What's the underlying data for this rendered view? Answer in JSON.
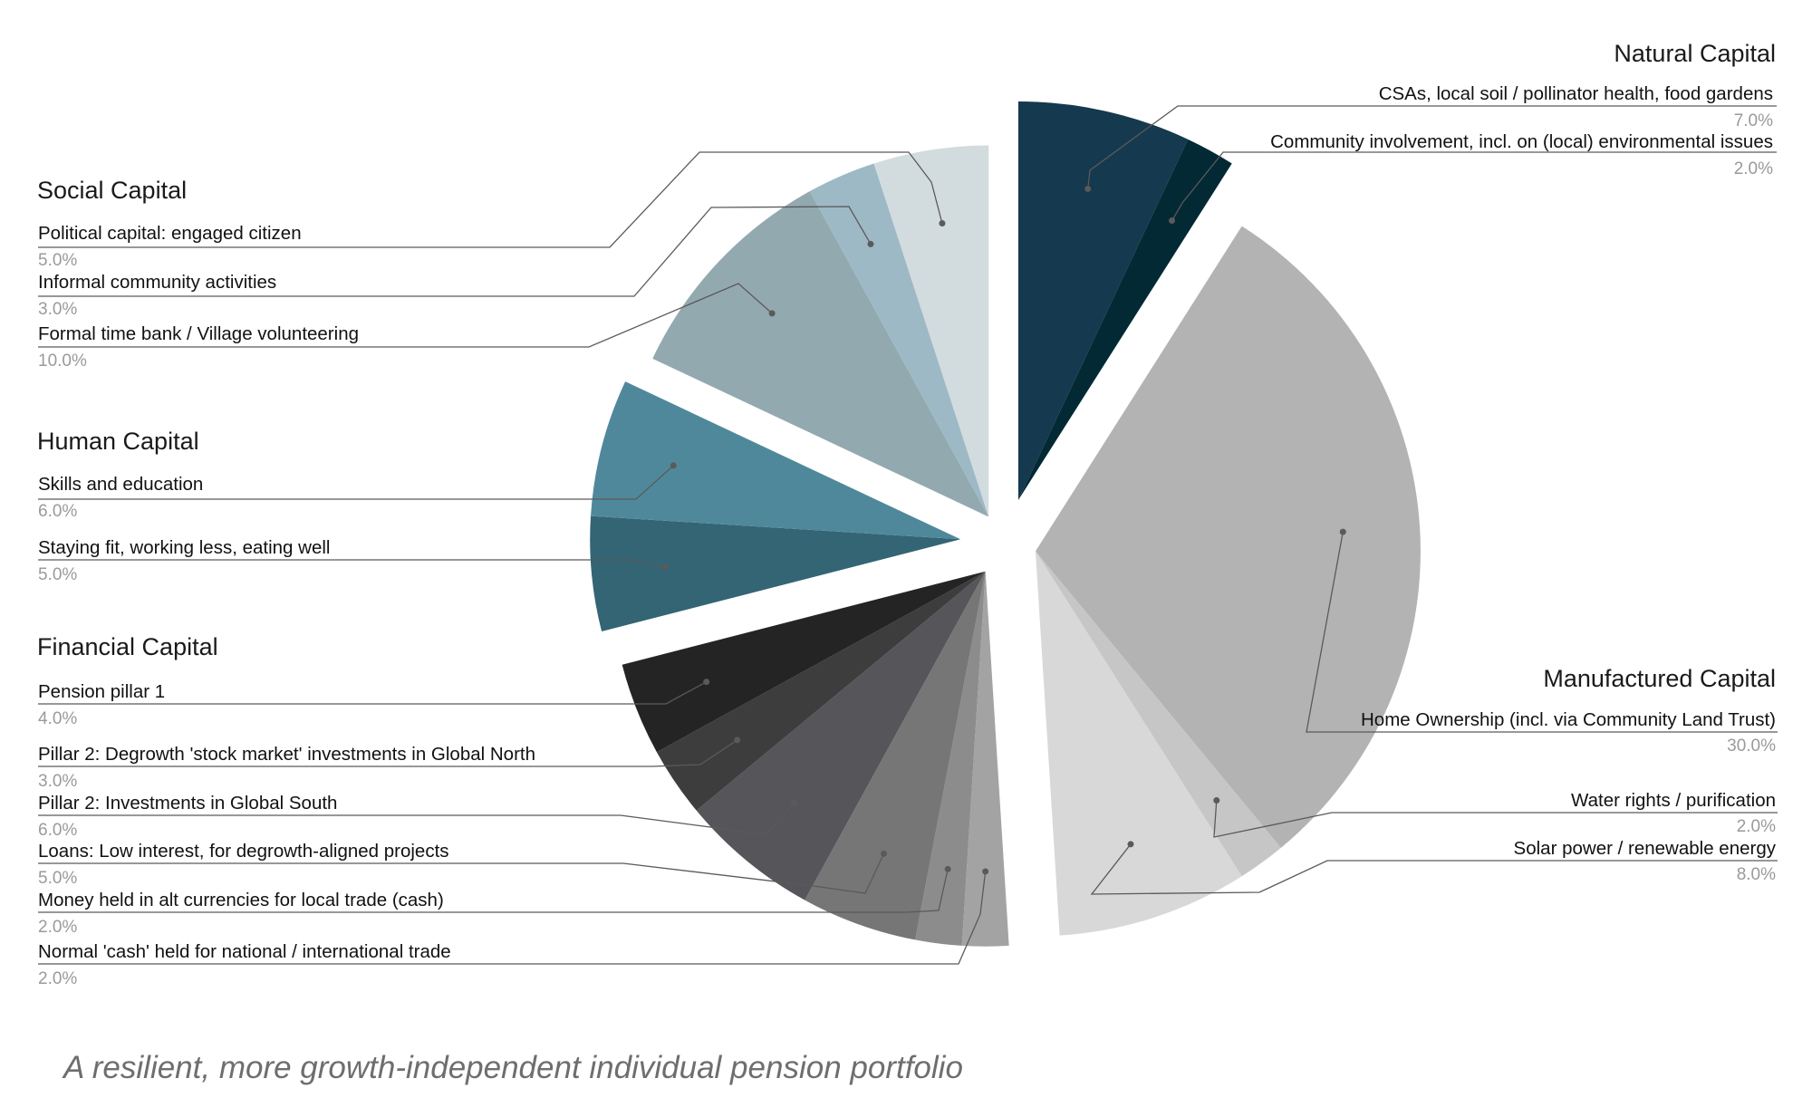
{
  "chart_data": {
    "type": "pie",
    "caption": "A resilient, more growth-independent individual pension portfolio",
    "groups": [
      {
        "name": "Natural Capital",
        "items": [
          {
            "label": "CSAs, local soil / pollinator health, food gardens",
            "value": 7.0,
            "pct": "7.0%",
            "color": "#15394e"
          },
          {
            "label": "Community involvement, incl. on (local) environmental issues",
            "value": 2.0,
            "pct": "2.0%",
            "color": "#032935"
          }
        ]
      },
      {
        "name": "Manufactured Capital",
        "items": [
          {
            "label": "Home Ownership (incl. via Community Land Trust)",
            "value": 30.0,
            "pct": "30.0%",
            "color": "#b3b3b3"
          },
          {
            "label": "Water rights / purification",
            "value": 2.0,
            "pct": "2.0%",
            "color": "#c6c6c6"
          },
          {
            "label": "Solar power / renewable energy",
            "value": 8.0,
            "pct": "8.0%",
            "color": "#d8d8d8"
          }
        ]
      },
      {
        "name": "Financial Capital",
        "items": [
          {
            "label": "Normal 'cash' held for national / international trade",
            "value": 2.0,
            "pct": "2.0%",
            "color": "#a3a3a3"
          },
          {
            "label": "Money held in alt currencies for local trade (cash)",
            "value": 2.0,
            "pct": "2.0%",
            "color": "#8c8c8c"
          },
          {
            "label": "Loans: Low interest, for degrowth-aligned projects",
            "value": 5.0,
            "pct": "5.0%",
            "color": "#767676"
          },
          {
            "label": "Pillar 2: Investments in Global South",
            "value": 6.0,
            "pct": "6.0%",
            "color": "#55555a"
          },
          {
            "label": "Pillar 2: Degrowth 'stock market' investments in Global North",
            "value": 3.0,
            "pct": "3.0%",
            "color": "#3d3d3d"
          },
          {
            "label": "Pension pillar 1",
            "value": 4.0,
            "pct": "4.0%",
            "color": "#242424"
          }
        ]
      },
      {
        "name": "Human Capital",
        "items": [
          {
            "label": "Staying fit, working less, eating well",
            "value": 5.0,
            "pct": "5.0%",
            "color": "#336574"
          },
          {
            "label": "Skills and education",
            "value": 6.0,
            "pct": "6.0%",
            "color": "#50889b"
          }
        ]
      },
      {
        "name": "Social Capital",
        "items": [
          {
            "label": "Formal time bank / Village volunteering",
            "value": 10.0,
            "pct": "10.0%",
            "color": "#93a9b0"
          },
          {
            "label": "Informal community activities",
            "value": 3.0,
            "pct": "3.0%",
            "color": "#9db9c5"
          },
          {
            "label": "Political capital: engaged citizen",
            "value": 5.0,
            "pct": "5.0%",
            "color": "#d2dbde"
          }
        ]
      }
    ]
  }
}
